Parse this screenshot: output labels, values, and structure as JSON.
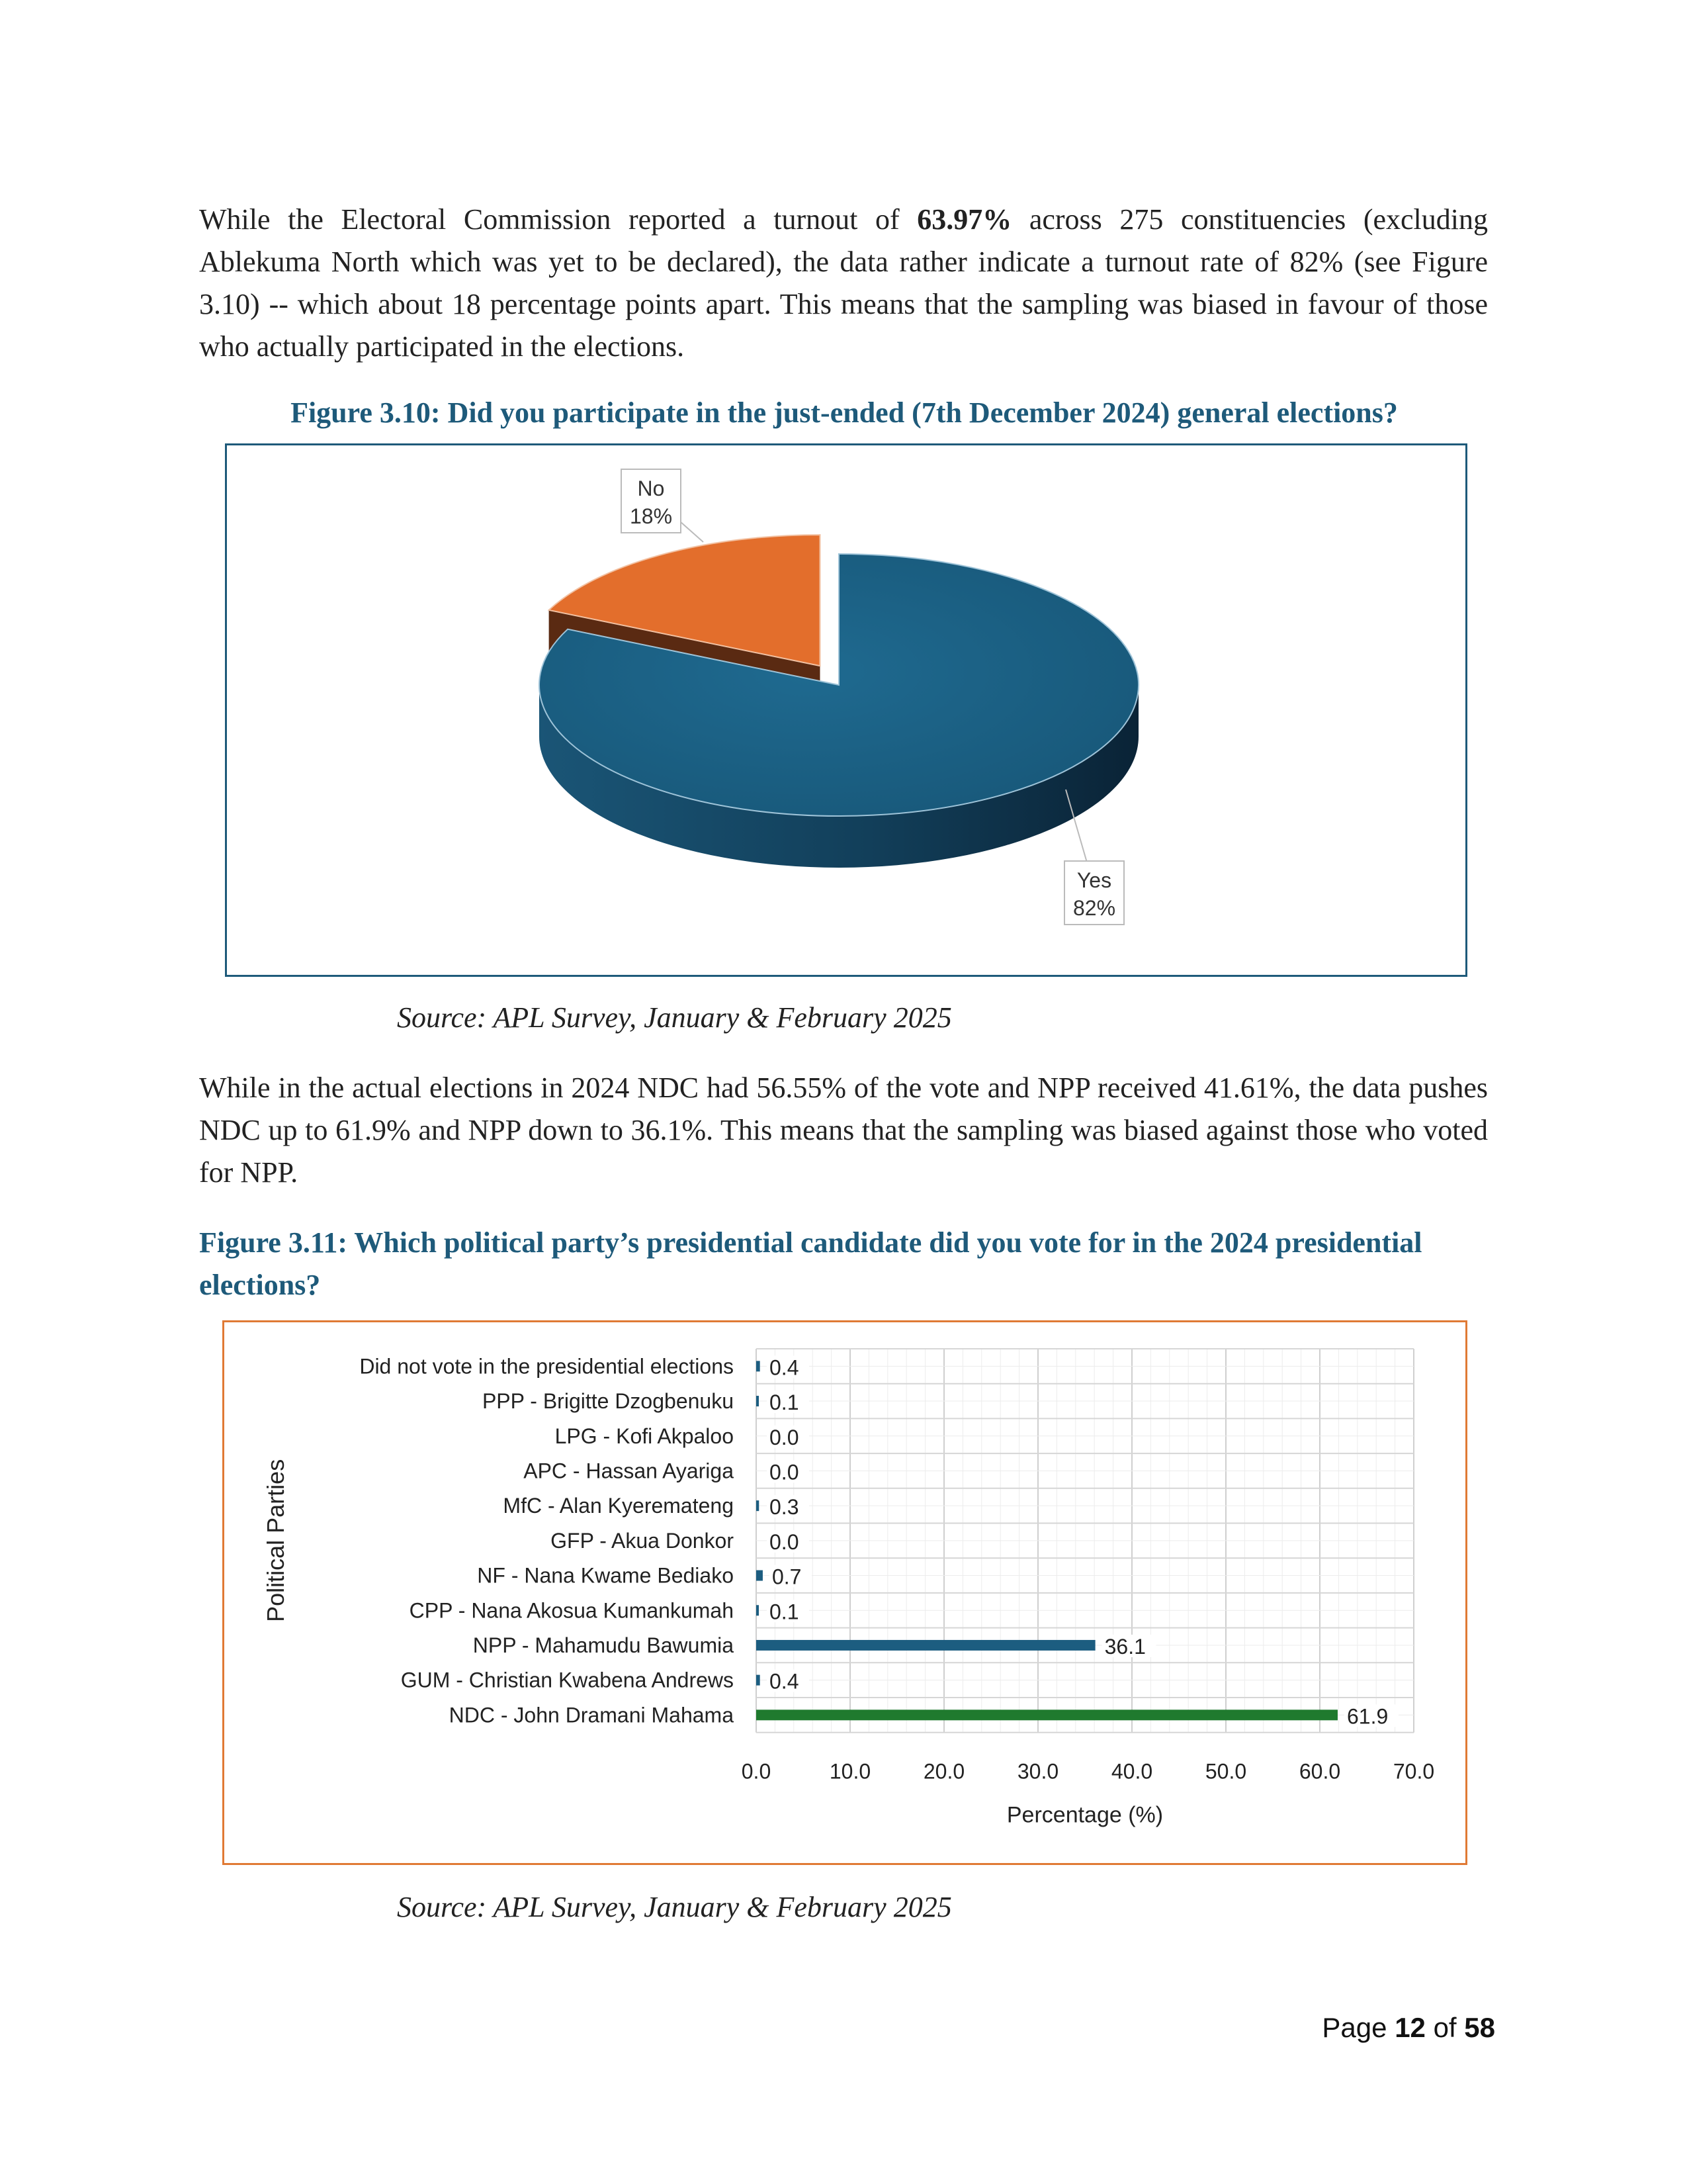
{
  "paragraph1": {
    "pre": "While the Electoral Commission reported a turnout of ",
    "bold": "63.97%",
    "post": " across 275 constituencies (excluding Ablekuma North which was yet to be declared), the data rather indicate a turnout rate of 82% (see Figure 3.10) -- which about 18 percentage points apart. This means that the sampling was biased in favour of those who actually participated in the elections."
  },
  "figure1": {
    "title": "Figure 3.10: Did you participate in the just-ended (7th December 2024) general elections?",
    "source": "Source: APL Survey, January & February 2025"
  },
  "paragraph2": "While in the actual elections in 2024 NDC had 56.55% of the vote and NPP received 41.61%, the data pushes NDC up to 61.9% and NPP down to 36.1%. This means that the sampling was biased against those who voted for NPP.",
  "figure2": {
    "title": "Figure 3.11: Which political party’s presidential candidate did you vote for in the 2024 presidential elections?",
    "source": "Source: APL Survey, January & February 2025"
  },
  "page": {
    "prefix": "Page ",
    "current": "12",
    "of": " of ",
    "total": "58"
  },
  "chart_data": [
    {
      "type": "pie",
      "title": "",
      "slices": [
        {
          "label": "Yes",
          "value": 82,
          "value_label": "82%",
          "color": "#1c5d80"
        },
        {
          "label": "No",
          "value": 18,
          "value_label": "18%",
          "color": "#e36e2c"
        }
      ],
      "three_d": true,
      "exploded": true
    },
    {
      "type": "bar",
      "orientation": "horizontal",
      "categories": [
        "Did not vote in the presidential elections",
        "PPP - Brigitte Dzogbenuku",
        "LPG - Kofi Akpaloo",
        "APC - Hassan Ayariga",
        "MfC - Alan Kyeremateng",
        "GFP - Akua Donkor",
        "NF - Nana Kwame Bediako",
        "CPP - Nana Akosua Kumankumah",
        "NPP - Mahamudu Bawumia",
        "GUM - Christian Kwabena Andrews",
        "NDC - John Dramani Mahama"
      ],
      "values": [
        0.4,
        0.1,
        0.0,
        0.0,
        0.3,
        0.0,
        0.7,
        0.1,
        36.1,
        0.4,
        61.9
      ],
      "value_labels": [
        "0.4",
        "0.1",
        "0.0",
        "0.0",
        "0.3",
        "0.0",
        "0.7",
        "0.1",
        "36.1",
        "0.4",
        "61.9"
      ],
      "bar_colors": [
        "#1c5d80",
        "#1c5d80",
        "#1c5d80",
        "#1c5d80",
        "#1c5d80",
        "#1c5d80",
        "#1c5d80",
        "#1c5d80",
        "#1c5d80",
        "#1c5d80",
        "#1f7a2e"
      ],
      "xlabel": "Percentage (%)",
      "ylabel": "Political Parties",
      "xlim": [
        0,
        70
      ],
      "xticks": [
        "0.0",
        "10.0",
        "20.0",
        "30.0",
        "40.0",
        "50.0",
        "60.0",
        "70.0"
      ],
      "grid": true
    }
  ]
}
